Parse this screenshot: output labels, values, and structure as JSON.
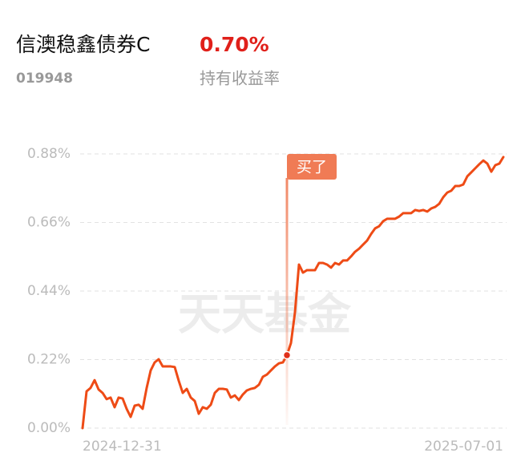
{
  "header": {
    "fund_name": "信澳稳鑫债券C",
    "return": "0.70%",
    "code": "019948",
    "return_label": "持有收益率"
  },
  "chart_data": {
    "type": "line",
    "watermark": "天天基金",
    "annotation": "买了",
    "color": "#ee4b16",
    "grid": true,
    "ylim": [
      0,
      0.88
    ],
    "yticks": [
      {
        "value": 0,
        "label": "0.00%"
      },
      {
        "value": 0.22,
        "label": "0.22%"
      },
      {
        "value": 0.44,
        "label": "0.44%"
      },
      {
        "value": 0.66,
        "label": "0.66%"
      },
      {
        "value": 0.88,
        "label": "0.88%"
      }
    ],
    "categories": [
      "2024-12-31",
      null,
      null,
      null,
      null,
      null,
      null,
      null,
      null,
      null,
      null,
      null,
      null,
      null,
      null,
      null,
      null,
      null,
      null,
      null,
      null,
      null,
      null,
      null,
      null,
      null,
      null,
      null,
      null,
      null,
      null,
      null,
      null,
      null,
      null,
      null,
      null,
      null,
      null,
      null,
      null,
      null,
      null,
      null,
      null,
      null,
      null,
      null,
      null,
      null,
      null,
      null,
      null,
      null,
      null,
      null,
      null,
      null,
      null,
      null,
      null,
      null,
      null,
      null,
      null,
      null,
      null,
      null,
      null,
      null,
      null,
      null,
      null,
      null,
      null,
      null,
      null,
      null,
      null,
      null,
      null,
      null,
      null,
      null,
      null,
      null,
      null,
      null,
      null,
      null,
      null,
      null,
      null,
      null,
      null,
      null,
      null,
      null,
      null,
      null,
      null,
      null,
      null,
      null,
      null,
      "2025-07-01"
    ],
    "values": [
      0,
      0.118,
      0.129,
      0.154,
      0.124,
      0.113,
      0.093,
      0.098,
      0.067,
      0.098,
      0.095,
      0.062,
      0.036,
      0.072,
      0.075,
      0.062,
      0.129,
      0.185,
      0.211,
      0.221,
      0.198,
      0.198,
      0.198,
      0.196,
      0.152,
      0.113,
      0.126,
      0.098,
      0.087,
      0.046,
      0.067,
      0.062,
      0.075,
      0.113,
      0.126,
      0.126,
      0.124,
      0.098,
      0.105,
      0.09,
      0.108,
      0.121,
      0.126,
      0.129,
      0.139,
      0.165,
      0.172,
      0.185,
      0.198,
      0.208,
      0.211,
      0.234,
      0.273,
      0.371,
      0.525,
      0.499,
      0.507,
      0.507,
      0.507,
      0.53,
      0.53,
      0.525,
      0.515,
      0.53,
      0.525,
      0.538,
      0.538,
      0.551,
      0.566,
      0.576,
      0.589,
      0.602,
      0.623,
      0.641,
      0.648,
      0.664,
      0.672,
      0.672,
      0.672,
      0.679,
      0.69,
      0.69,
      0.69,
      0.7,
      0.697,
      0.7,
      0.695,
      0.705,
      0.71,
      0.72,
      0.741,
      0.756,
      0.762,
      0.777,
      0.777,
      0.782,
      0.808,
      0.821,
      0.834,
      0.847,
      0.859,
      0.849,
      0.823,
      0.844,
      0.849,
      0.87
    ]
  }
}
